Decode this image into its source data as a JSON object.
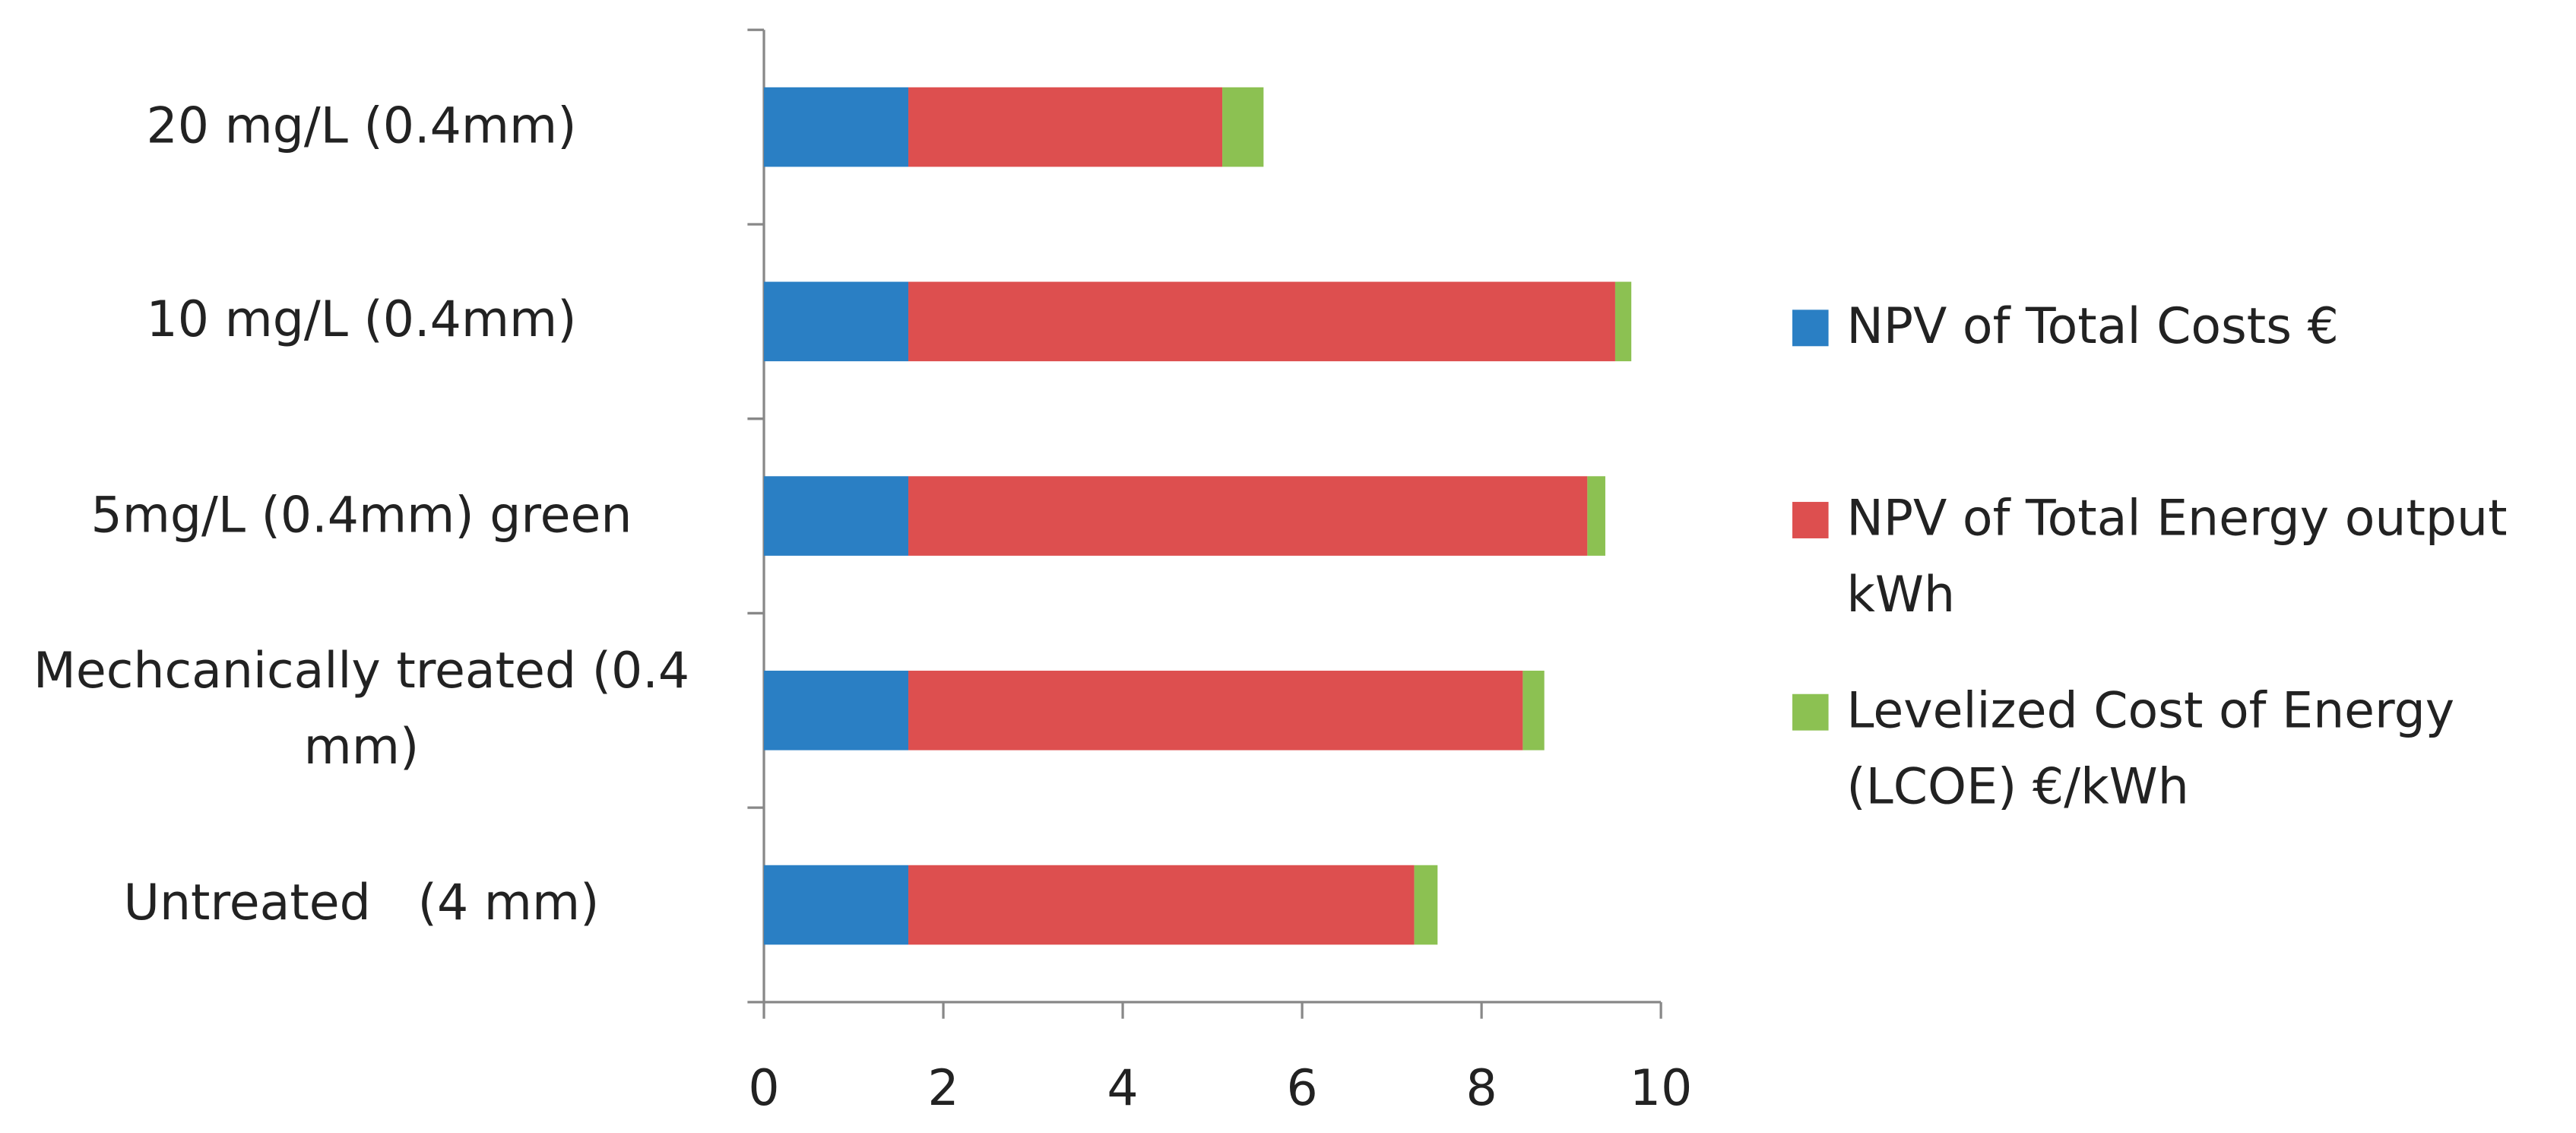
{
  "chart_data": {
    "type": "stacked-bar-horizontal",
    "categories": [
      "Untreated   (4 mm)",
      "Mechcanically treated (0.4 mm)",
      "5mg/L (0.4mm) green",
      "10 mg/L (0.4mm)",
      "20 mg/L (0.4mm)"
    ],
    "series": [
      {
        "name": "NPV of Total Costs €",
        "color": "#2a7fc4",
        "values": [
          1.61,
          1.61,
          1.61,
          1.61,
          1.61
        ]
      },
      {
        "name": "NPV of Total Energy output kWh",
        "color": "#dd4f4f",
        "values": [
          5.64,
          6.85,
          7.57,
          7.88,
          3.5
        ]
      },
      {
        "name": "Levelized Cost of Energy (LCOE) €/kWh",
        "color": "#8cc152",
        "values": [
          0.26,
          0.24,
          0.2,
          0.18,
          0.46
        ]
      }
    ],
    "xlim": [
      0,
      10
    ],
    "xticks": [
      0,
      2,
      4,
      6,
      8,
      10
    ],
    "legend": "right"
  }
}
